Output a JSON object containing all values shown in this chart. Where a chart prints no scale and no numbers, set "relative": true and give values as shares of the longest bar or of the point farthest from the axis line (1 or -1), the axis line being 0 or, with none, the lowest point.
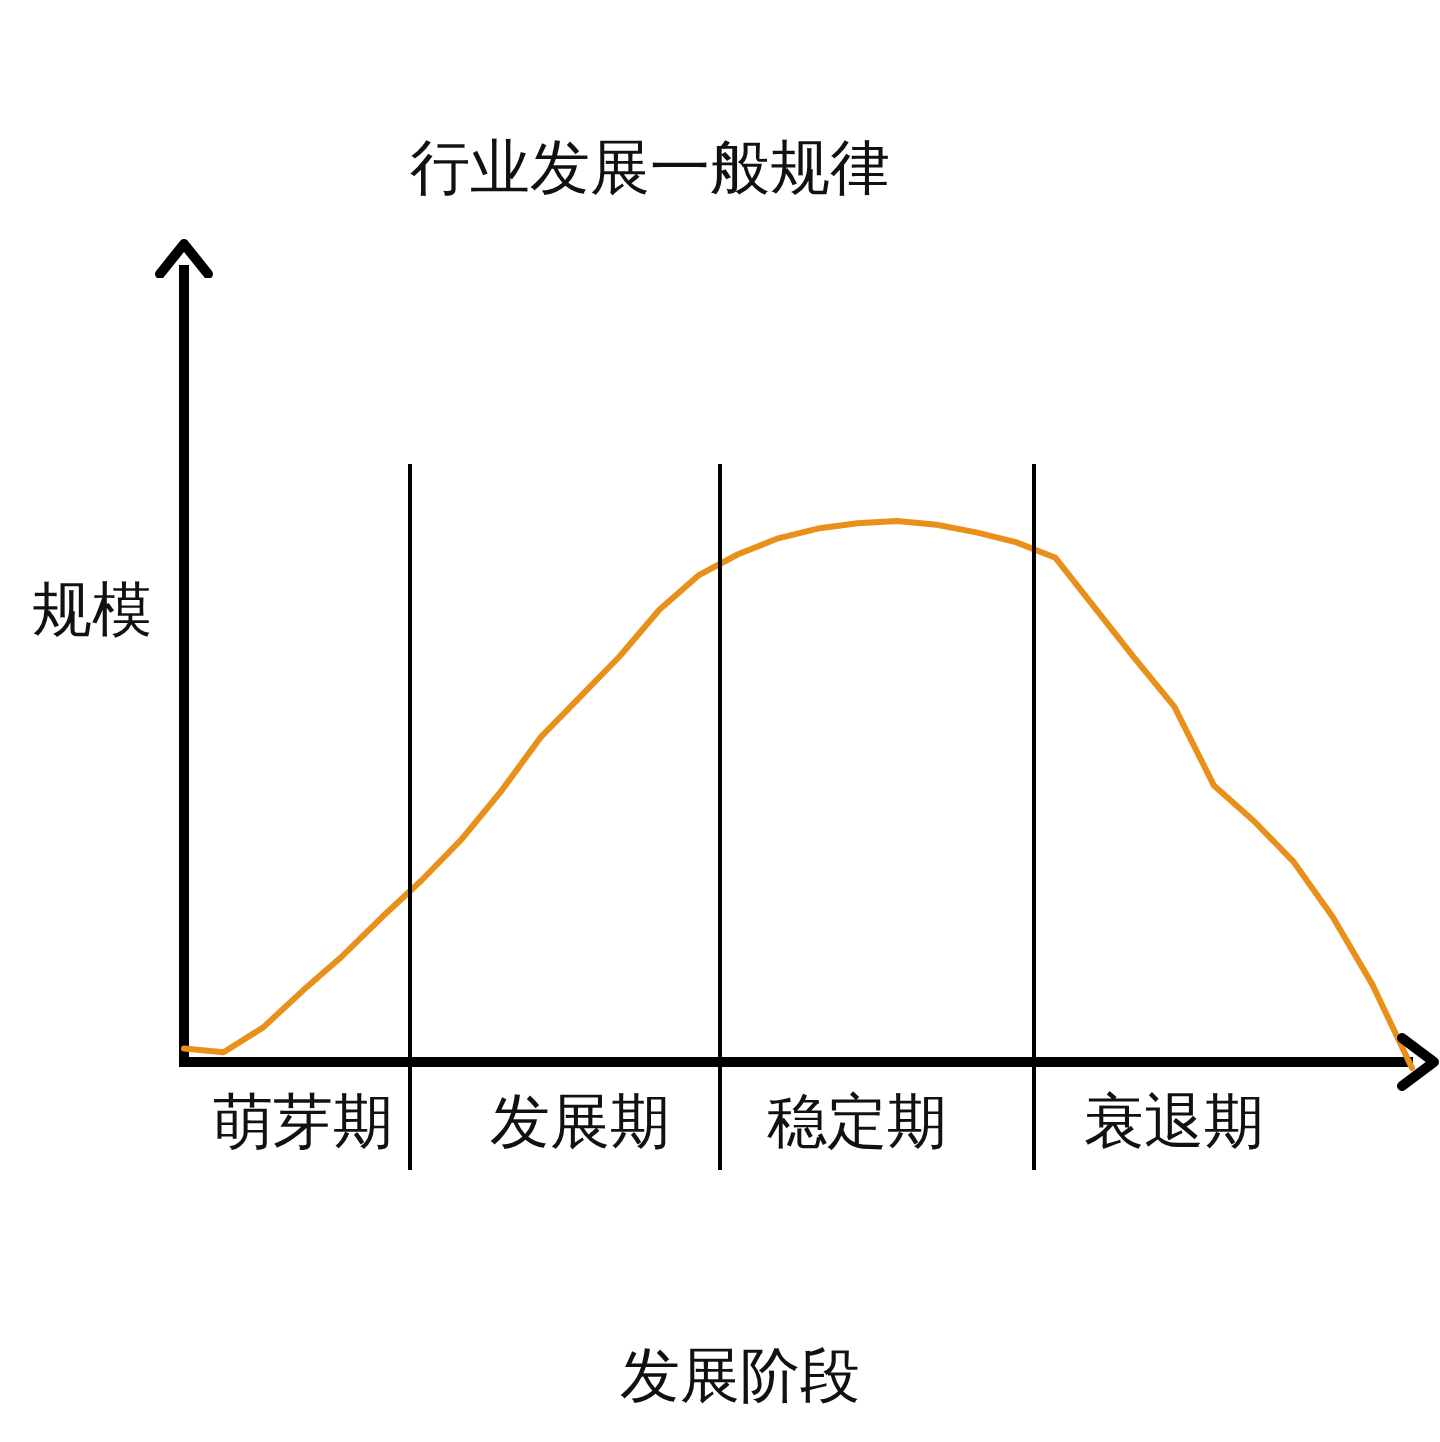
{
  "chart_data": {
    "type": "line",
    "title": "行业发展一般规律",
    "xlabel": "发展阶段",
    "ylabel": "规模",
    "relative": true,
    "tick_labels": "x",
    "marker": "none",
    "categories": [
      null,
      null,
      null,
      "萌芽期",
      null,
      null,
      null,
      null,
      null,
      null,
      "发展期",
      null,
      null,
      null,
      null,
      null,
      null,
      "稳定期",
      null,
      null,
      null,
      null,
      null,
      null,
      null,
      "衰退期",
      null,
      null,
      null,
      null,
      null,
      null
    ],
    "values": [
      0.025,
      0.018,
      0.064,
      0.132,
      0.196,
      0.268,
      0.336,
      0.411,
      0.5,
      0.6,
      0.675,
      0.75,
      0.836,
      0.9,
      0.939,
      0.968,
      0.986,
      0.996,
      1,
      0.993,
      0.979,
      0.961,
      0.932,
      0.839,
      0.746,
      0.657,
      0.511,
      0.446,
      0.371,
      0.268,
      0.143,
      -0.011
    ],
    "color": "#e8901a"
  }
}
